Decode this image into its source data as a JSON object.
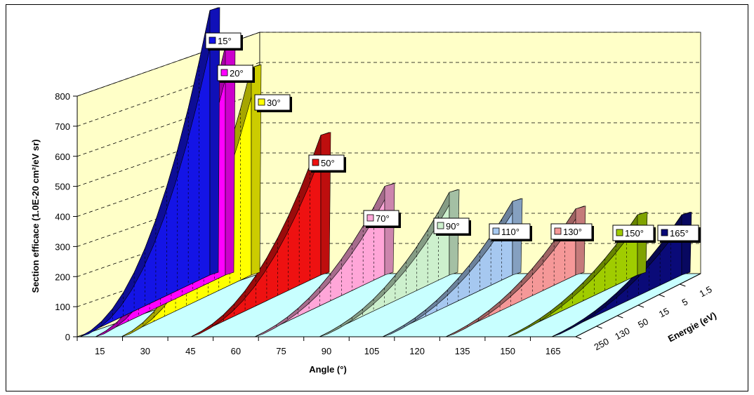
{
  "chart_data": {
    "type": "area-3d",
    "ylabel": "Section efficace (1.0E-20 cm²/eV sr)",
    "xlabel": "Angle (°)",
    "zlabel": "Energie (eV)",
    "ylim": [
      0,
      800
    ],
    "y_ticks": [
      0,
      100,
      200,
      300,
      400,
      500,
      600,
      700,
      800
    ],
    "x_ticks": [
      "15",
      "30",
      "45",
      "60",
      "75",
      "90",
      "105",
      "120",
      "135",
      "150",
      "165"
    ],
    "z_ticks": [
      "250",
      "130",
      "50",
      "15",
      "5",
      "1.5"
    ],
    "grid": true,
    "series": [
      {
        "name": "15°",
        "color": "#1414e6",
        "peak": 880
      },
      {
        "name": "20°",
        "color": "#ff00ff",
        "peak": 760
      },
      {
        "name": "30°",
        "color": "#ffff00",
        "peak": 690
      },
      {
        "name": "50°",
        "color": "#ee1111",
        "peak": 465
      },
      {
        "name": "70°",
        "color": "#ffa6d8",
        "peak": 295
      },
      {
        "name": "90°",
        "color": "#cdf0cd",
        "peak": 275
      },
      {
        "name": "110°",
        "color": "#a6c8f0",
        "peak": 245
      },
      {
        "name": "130°",
        "color": "#f59898",
        "peak": 220
      },
      {
        "name": "150°",
        "color": "#a0cc00",
        "peak": 200
      },
      {
        "name": "165°",
        "color": "#0a0a78",
        "peak": 200
      }
    ]
  }
}
